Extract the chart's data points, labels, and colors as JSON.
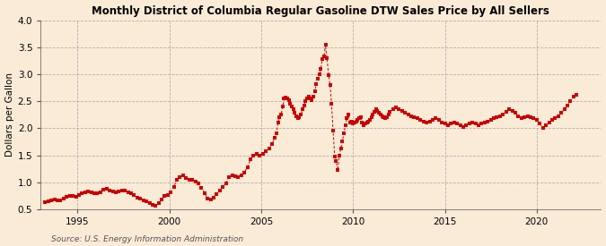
{
  "title": "Monthly District of Columbia Regular Gasoline DTW Sales Price by All Sellers",
  "ylabel": "Dollars per Gallon",
  "source": "Source: U.S. Energy Information Administration",
  "background_color": "#faebd7",
  "line_color": "#cc0000",
  "xlim": [
    1993.0,
    2023.5
  ],
  "ylim": [
    0.5,
    4.0
  ],
  "yticks": [
    0.5,
    1.0,
    1.5,
    2.0,
    2.5,
    3.0,
    3.5,
    4.0
  ],
  "xticks": [
    1995,
    2000,
    2005,
    2010,
    2015,
    2020
  ],
  "data": [
    [
      1993.25,
      0.63
    ],
    [
      1993.42,
      0.65
    ],
    [
      1993.58,
      0.67
    ],
    [
      1993.75,
      0.68
    ],
    [
      1993.92,
      0.67
    ],
    [
      1994.08,
      0.66
    ],
    [
      1994.25,
      0.7
    ],
    [
      1994.42,
      0.73
    ],
    [
      1994.58,
      0.75
    ],
    [
      1994.75,
      0.74
    ],
    [
      1994.92,
      0.73
    ],
    [
      1995.08,
      0.76
    ],
    [
      1995.25,
      0.8
    ],
    [
      1995.42,
      0.82
    ],
    [
      1995.58,
      0.83
    ],
    [
      1995.75,
      0.82
    ],
    [
      1995.92,
      0.8
    ],
    [
      1996.08,
      0.79
    ],
    [
      1996.25,
      0.82
    ],
    [
      1996.42,
      0.86
    ],
    [
      1996.58,
      0.88
    ],
    [
      1996.75,
      0.85
    ],
    [
      1996.92,
      0.83
    ],
    [
      1997.08,
      0.82
    ],
    [
      1997.25,
      0.83
    ],
    [
      1997.42,
      0.85
    ],
    [
      1997.58,
      0.84
    ],
    [
      1997.75,
      0.82
    ],
    [
      1997.92,
      0.8
    ],
    [
      1998.08,
      0.76
    ],
    [
      1998.25,
      0.71
    ],
    [
      1998.42,
      0.69
    ],
    [
      1998.58,
      0.67
    ],
    [
      1998.75,
      0.64
    ],
    [
      1998.92,
      0.62
    ],
    [
      1999.08,
      0.58
    ],
    [
      1999.25,
      0.57
    ],
    [
      1999.42,
      0.62
    ],
    [
      1999.58,
      0.68
    ],
    [
      1999.75,
      0.74
    ],
    [
      1999.92,
      0.76
    ],
    [
      2000.08,
      0.82
    ],
    [
      2000.25,
      0.92
    ],
    [
      2000.42,
      1.05
    ],
    [
      2000.58,
      1.1
    ],
    [
      2000.75,
      1.12
    ],
    [
      2000.92,
      1.08
    ],
    [
      2001.08,
      1.05
    ],
    [
      2001.25,
      1.04
    ],
    [
      2001.42,
      1.02
    ],
    [
      2001.58,
      0.98
    ],
    [
      2001.75,
      0.9
    ],
    [
      2001.92,
      0.8
    ],
    [
      2002.08,
      0.7
    ],
    [
      2002.25,
      0.68
    ],
    [
      2002.42,
      0.72
    ],
    [
      2002.58,
      0.78
    ],
    [
      2002.75,
      0.85
    ],
    [
      2002.92,
      0.92
    ],
    [
      2003.08,
      0.98
    ],
    [
      2003.25,
      1.1
    ],
    [
      2003.42,
      1.13
    ],
    [
      2003.58,
      1.11
    ],
    [
      2003.75,
      1.1
    ],
    [
      2003.92,
      1.12
    ],
    [
      2004.08,
      1.18
    ],
    [
      2004.25,
      1.28
    ],
    [
      2004.42,
      1.42
    ],
    [
      2004.58,
      1.5
    ],
    [
      2004.75,
      1.52
    ],
    [
      2004.92,
      1.5
    ],
    [
      2005.08,
      1.52
    ],
    [
      2005.25,
      1.57
    ],
    [
      2005.42,
      1.62
    ],
    [
      2005.58,
      1.7
    ],
    [
      2005.75,
      1.82
    ],
    [
      2005.83,
      1.9
    ],
    [
      2005.92,
      2.1
    ],
    [
      2006.0,
      2.2
    ],
    [
      2006.08,
      2.25
    ],
    [
      2006.17,
      2.4
    ],
    [
      2006.25,
      2.55
    ],
    [
      2006.33,
      2.57
    ],
    [
      2006.42,
      2.55
    ],
    [
      2006.5,
      2.52
    ],
    [
      2006.58,
      2.45
    ],
    [
      2006.67,
      2.4
    ],
    [
      2006.75,
      2.35
    ],
    [
      2006.83,
      2.28
    ],
    [
      2006.92,
      2.22
    ],
    [
      2007.0,
      2.18
    ],
    [
      2007.08,
      2.2
    ],
    [
      2007.17,
      2.25
    ],
    [
      2007.25,
      2.35
    ],
    [
      2007.33,
      2.42
    ],
    [
      2007.42,
      2.5
    ],
    [
      2007.5,
      2.55
    ],
    [
      2007.58,
      2.58
    ],
    [
      2007.67,
      2.55
    ],
    [
      2007.75,
      2.52
    ],
    [
      2007.83,
      2.58
    ],
    [
      2007.92,
      2.68
    ],
    [
      2008.0,
      2.82
    ],
    [
      2008.08,
      2.92
    ],
    [
      2008.17,
      3.0
    ],
    [
      2008.25,
      3.1
    ],
    [
      2008.33,
      3.28
    ],
    [
      2008.42,
      3.33
    ],
    [
      2008.5,
      3.55
    ],
    [
      2008.58,
      3.3
    ],
    [
      2008.67,
      2.98
    ],
    [
      2008.75,
      2.8
    ],
    [
      2008.83,
      2.45
    ],
    [
      2008.92,
      1.95
    ],
    [
      2009.0,
      1.48
    ],
    [
      2009.08,
      1.4
    ],
    [
      2009.17,
      1.22
    ],
    [
      2009.25,
      1.5
    ],
    [
      2009.33,
      1.62
    ],
    [
      2009.42,
      1.75
    ],
    [
      2009.5,
      1.9
    ],
    [
      2009.58,
      2.05
    ],
    [
      2009.67,
      2.18
    ],
    [
      2009.75,
      2.25
    ],
    [
      2009.83,
      2.1
    ],
    [
      2009.92,
      2.12
    ],
    [
      2010.0,
      2.08
    ],
    [
      2010.08,
      2.1
    ],
    [
      2010.17,
      2.12
    ],
    [
      2010.25,
      2.15
    ],
    [
      2010.33,
      2.18
    ],
    [
      2010.42,
      2.2
    ],
    [
      2010.5,
      2.1
    ],
    [
      2010.58,
      2.05
    ],
    [
      2010.67,
      2.08
    ],
    [
      2010.75,
      2.1
    ],
    [
      2010.83,
      2.12
    ],
    [
      2010.92,
      2.15
    ],
    [
      2011.0,
      2.2
    ],
    [
      2011.08,
      2.25
    ],
    [
      2011.17,
      2.3
    ],
    [
      2011.25,
      2.35
    ],
    [
      2011.33,
      2.32
    ],
    [
      2011.42,
      2.28
    ],
    [
      2011.5,
      2.25
    ],
    [
      2011.58,
      2.22
    ],
    [
      2011.67,
      2.2
    ],
    [
      2011.75,
      2.18
    ],
    [
      2011.83,
      2.2
    ],
    [
      2011.92,
      2.25
    ],
    [
      2012.0,
      2.3
    ],
    [
      2012.17,
      2.35
    ],
    [
      2012.33,
      2.38
    ],
    [
      2012.5,
      2.35
    ],
    [
      2012.67,
      2.32
    ],
    [
      2012.83,
      2.28
    ],
    [
      2013.0,
      2.25
    ],
    [
      2013.17,
      2.22
    ],
    [
      2013.33,
      2.2
    ],
    [
      2013.5,
      2.18
    ],
    [
      2013.67,
      2.15
    ],
    [
      2013.83,
      2.12
    ],
    [
      2014.0,
      2.1
    ],
    [
      2014.17,
      2.12
    ],
    [
      2014.33,
      2.15
    ],
    [
      2014.5,
      2.18
    ],
    [
      2014.67,
      2.15
    ],
    [
      2014.83,
      2.1
    ],
    [
      2015.0,
      2.08
    ],
    [
      2015.17,
      2.05
    ],
    [
      2015.33,
      2.08
    ],
    [
      2015.5,
      2.1
    ],
    [
      2015.67,
      2.08
    ],
    [
      2015.83,
      2.05
    ],
    [
      2016.0,
      2.02
    ],
    [
      2016.17,
      2.05
    ],
    [
      2016.33,
      2.08
    ],
    [
      2016.5,
      2.1
    ],
    [
      2016.67,
      2.08
    ],
    [
      2016.83,
      2.05
    ],
    [
      2017.0,
      2.08
    ],
    [
      2017.17,
      2.1
    ],
    [
      2017.33,
      2.12
    ],
    [
      2017.5,
      2.15
    ],
    [
      2017.67,
      2.18
    ],
    [
      2017.83,
      2.2
    ],
    [
      2018.0,
      2.22
    ],
    [
      2018.17,
      2.25
    ],
    [
      2018.33,
      2.3
    ],
    [
      2018.5,
      2.35
    ],
    [
      2018.67,
      2.32
    ],
    [
      2018.83,
      2.28
    ],
    [
      2019.0,
      2.22
    ],
    [
      2019.17,
      2.18
    ],
    [
      2019.33,
      2.2
    ],
    [
      2019.5,
      2.22
    ],
    [
      2019.67,
      2.2
    ],
    [
      2019.83,
      2.18
    ],
    [
      2020.0,
      2.15
    ],
    [
      2020.17,
      2.08
    ],
    [
      2020.33,
      2.0
    ],
    [
      2020.5,
      2.05
    ],
    [
      2020.67,
      2.1
    ],
    [
      2020.83,
      2.15
    ],
    [
      2021.0,
      2.18
    ],
    [
      2021.17,
      2.22
    ],
    [
      2021.33,
      2.28
    ],
    [
      2021.5,
      2.35
    ],
    [
      2021.67,
      2.42
    ],
    [
      2021.83,
      2.5
    ],
    [
      2022.0,
      2.58
    ],
    [
      2022.17,
      2.62
    ]
  ]
}
